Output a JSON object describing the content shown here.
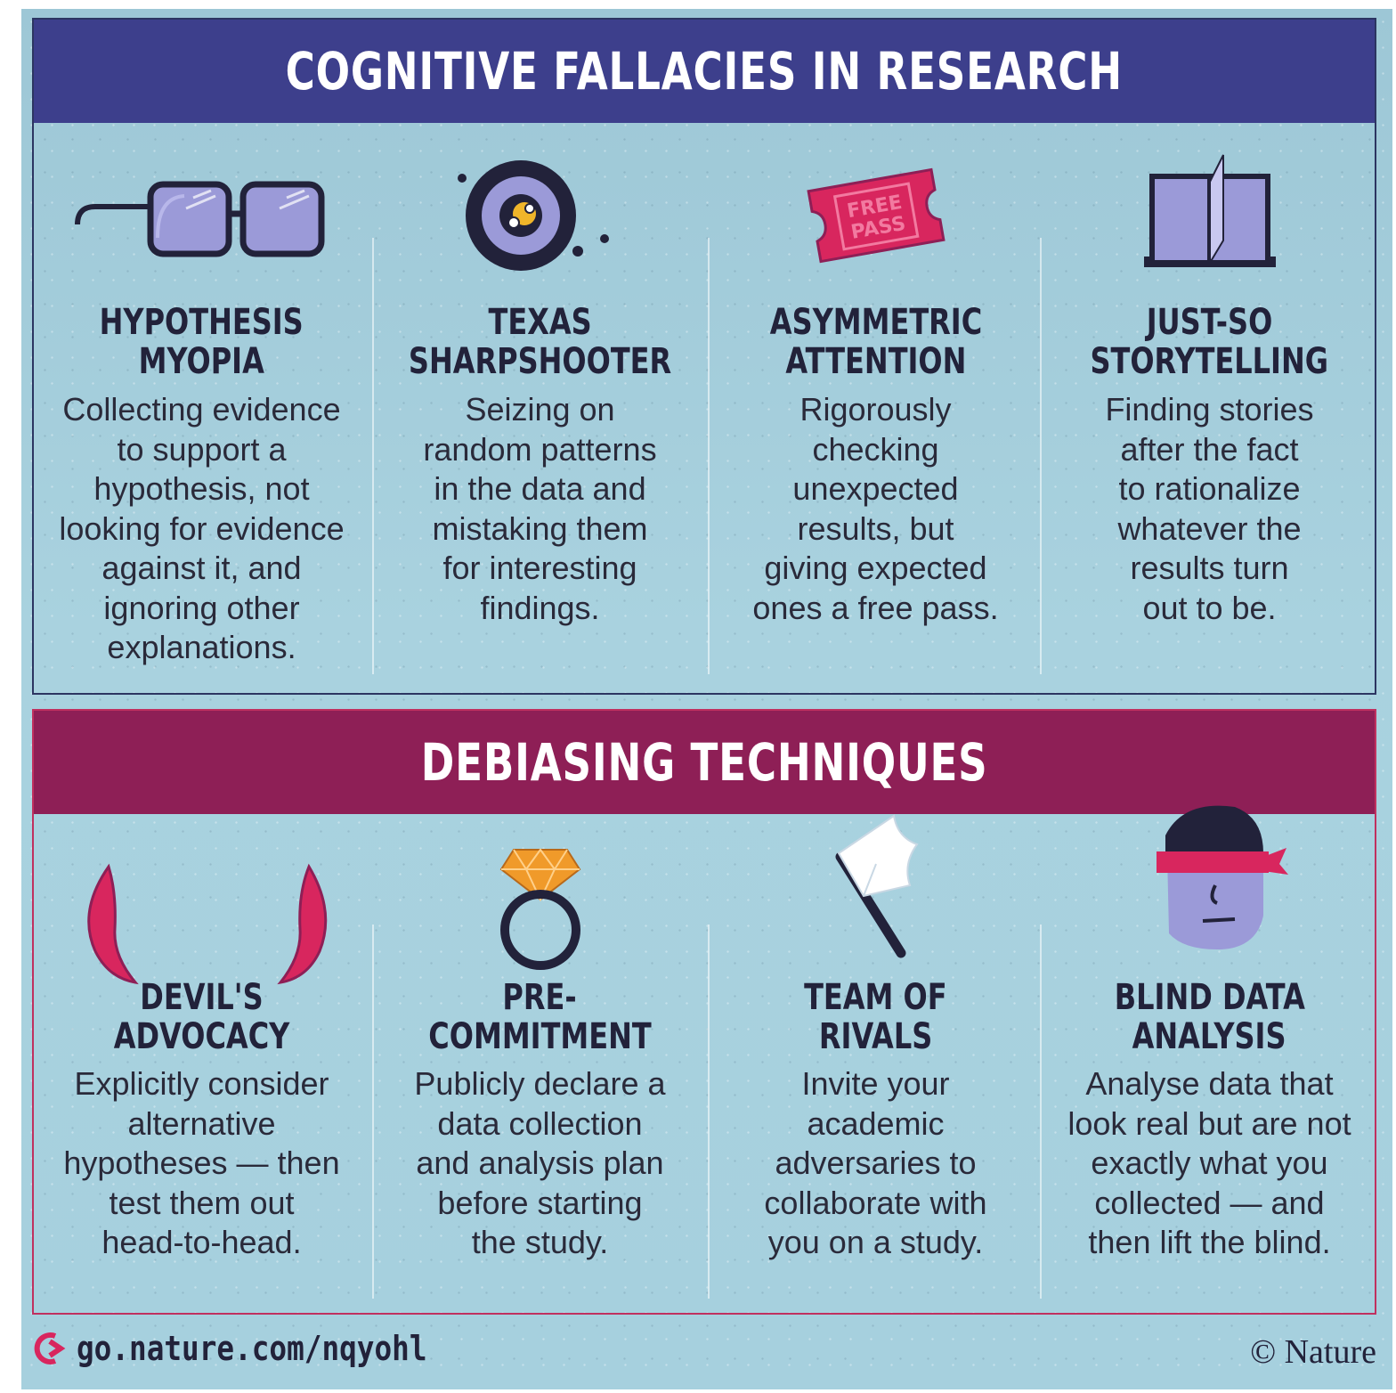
{
  "top": {
    "title": "COGNITIVE FALLACIES IN RESEARCH",
    "items": [
      {
        "icon": "glasses-icon",
        "heading_1": "HYPOTHESIS",
        "heading_2": "MYOPIA",
        "description": "Collecting evidence\nto support a\nhypothesis, not\nlooking for evidence\nagainst it, and\nignoring other\nexplanations."
      },
      {
        "icon": "target-icon",
        "heading_1": "TEXAS",
        "heading_2": "SHARPSHOOTER",
        "description": "Seizing on\nrandom patterns\nin the data and\nmistaking them\nfor interesting\nfindings."
      },
      {
        "icon": "ticket-icon",
        "heading_1": "ASYMMETRIC",
        "heading_2": "ATTENTION",
        "description": "Rigorously\nchecking\nunexpected\nresults, but\ngiving expected\nones a free pass.",
        "ticket_line_1": "FREE",
        "ticket_line_2": "PASS"
      },
      {
        "icon": "book-icon",
        "heading_1": "JUST-SO",
        "heading_2": "STORYTELLING",
        "description": "Finding stories\nafter the fact\nto rationalize\nwhatever the\nresults turn\nout to be."
      }
    ]
  },
  "bottom": {
    "title": "DEBIASING TECHNIQUES",
    "items": [
      {
        "icon": "devil-horns-icon",
        "heading_1": "DEVIL'S",
        "heading_2": "ADVOCACY",
        "description": "Explicitly consider\nalternative\nhypotheses — then\ntest them out\nhead-to-head."
      },
      {
        "icon": "diamond-ring-icon",
        "heading_1": "PRE-",
        "heading_2": "COMMITMENT",
        "description": "Publicly declare a\ndata collection\nand analysis plan\nbefore starting\nthe study."
      },
      {
        "icon": "white-flag-icon",
        "heading_1": "TEAM OF",
        "heading_2": "RIVALS",
        "description": "Invite your\nacademic\nadversaries to\ncollaborate with\nyou on a study."
      },
      {
        "icon": "blindfold-face-icon",
        "heading_1": "BLIND DATA",
        "heading_2": "ANALYSIS",
        "description": "Analyse data that\nlook real but are not\nexactly what you\ncollected — and\nthen lift the blind."
      }
    ]
  },
  "footer": {
    "link": "go.nature.com/nqyohl",
    "copyright": "© Nature"
  },
  "colors": {
    "navy": "#3d3f8c",
    "magenta": "#8e1f56",
    "pink": "#d8265e",
    "lavender": "#9b9ad8",
    "orange": "#f09a2a",
    "dark": "#22223a"
  }
}
